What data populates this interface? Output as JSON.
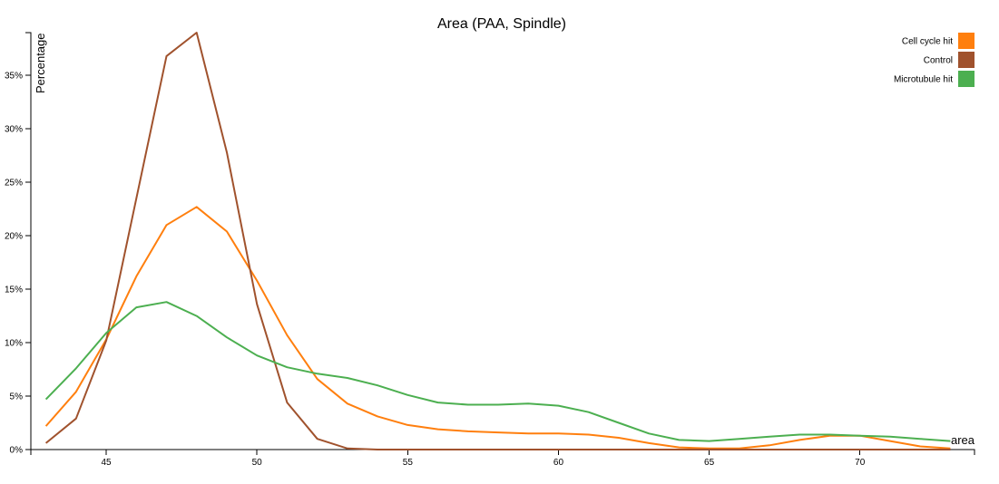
{
  "chart_data": {
    "type": "line",
    "title": "Area (PAA, Spindle)",
    "xlabel": "area",
    "ylabel": "Percentage",
    "xlim": [
      42.5,
      73.8
    ],
    "ylim": [
      0,
      0.39
    ],
    "x_ticks": [
      45,
      50,
      55,
      60,
      65,
      70
    ],
    "y_ticks": [
      0,
      0.05,
      0.1,
      0.15,
      0.2,
      0.25,
      0.3,
      0.35
    ],
    "y_tick_labels": [
      "0%",
      "5%",
      "10%",
      "15%",
      "20%",
      "25%",
      "30%",
      "35%"
    ],
    "legend_position": "top-right",
    "x": [
      43,
      44,
      45,
      46,
      47,
      48,
      49,
      50,
      51,
      52,
      53,
      54,
      55,
      56,
      57,
      58,
      59,
      60,
      61,
      62,
      63,
      64,
      65,
      66,
      67,
      68,
      69,
      70,
      71,
      72,
      73
    ],
    "series": [
      {
        "name": "Cell cycle hit",
        "color": "#ff7f0e",
        "values": [
          0.022,
          0.054,
          0.103,
          0.162,
          0.21,
          0.227,
          0.204,
          0.158,
          0.107,
          0.066,
          0.043,
          0.031,
          0.023,
          0.019,
          0.017,
          0.016,
          0.015,
          0.015,
          0.014,
          0.011,
          0.006,
          0.002,
          0.001,
          0.001,
          0.004,
          0.009,
          0.013,
          0.013,
          0.008,
          0.003,
          0.001
        ]
      },
      {
        "name": "Control",
        "color": "#a0522d",
        "values": [
          0.006,
          0.029,
          0.102,
          0.235,
          0.368,
          0.39,
          0.278,
          0.136,
          0.044,
          0.01,
          0.001,
          0,
          0,
          0,
          0,
          0,
          0,
          0,
          0,
          0,
          0,
          0,
          0,
          0,
          0,
          0,
          0,
          0,
          0,
          0,
          0
        ]
      },
      {
        "name": "Microtubule hit",
        "color": "#4caf50",
        "values": [
          0.047,
          0.076,
          0.109,
          0.133,
          0.138,
          0.125,
          0.105,
          0.088,
          0.077,
          0.071,
          0.067,
          0.06,
          0.051,
          0.044,
          0.042,
          0.042,
          0.043,
          0.041,
          0.035,
          0.025,
          0.015,
          0.009,
          0.008,
          0.01,
          0.012,
          0.014,
          0.014,
          0.013,
          0.012,
          0.01,
          0.008
        ]
      }
    ]
  }
}
